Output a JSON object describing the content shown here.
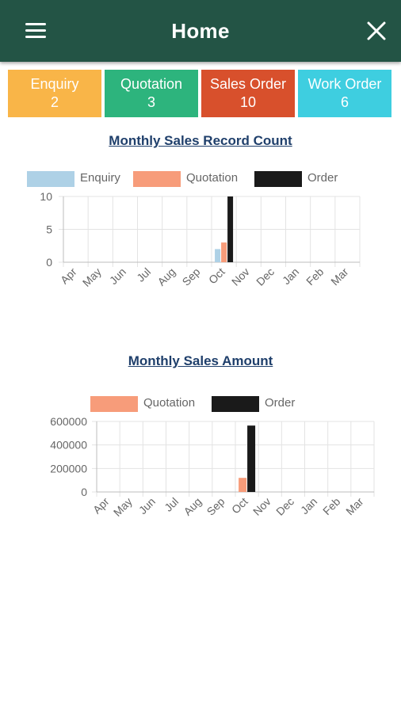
{
  "appbar": {
    "title": "Home",
    "menu_icon": "hamburger-menu-icon",
    "close_icon": "close-icon"
  },
  "cards": [
    {
      "label": "Enquiry",
      "count": "2",
      "color": "#F9B548"
    },
    {
      "label": "Quotation",
      "count": "3",
      "color": "#2DB47D"
    },
    {
      "label": "Sales Order",
      "count": "10",
      "color": "#D8502C"
    },
    {
      "label": "Work Order",
      "count": "6",
      "color": "#3ECEE0"
    }
  ],
  "chart1": {
    "title": "Monthly Sales Record Count"
  },
  "chart2": {
    "title": "Monthly Sales Amount"
  },
  "chart_data": [
    {
      "type": "bar",
      "title": "Monthly Sales Record Count",
      "categories": [
        "Apr",
        "May",
        "Jun",
        "Jul",
        "Aug",
        "Sep",
        "Oct",
        "Nov",
        "Dec",
        "Jan",
        "Feb",
        "Mar"
      ],
      "series": [
        {
          "name": "Enquiry",
          "color": "#AED1E6",
          "values": [
            0,
            0,
            0,
            0,
            0,
            0,
            2,
            0,
            0,
            0,
            0,
            0
          ]
        },
        {
          "name": "Quotation",
          "color": "#F79C7A",
          "values": [
            0,
            0,
            0,
            0,
            0,
            0,
            3,
            0,
            0,
            0,
            0,
            0
          ]
        },
        {
          "name": "Order",
          "color": "#1A1A1A",
          "values": [
            0,
            0,
            0,
            0,
            0,
            0,
            10,
            0,
            0,
            0,
            0,
            0
          ]
        }
      ],
      "yticks": [
        "0",
        "5",
        "10"
      ],
      "ylim": [
        0,
        10
      ],
      "grid": true,
      "legend": "top"
    },
    {
      "type": "bar",
      "title": "Monthly Sales Amount",
      "categories": [
        "Apr",
        "May",
        "Jun",
        "Jul",
        "Aug",
        "Sep",
        "Oct",
        "Nov",
        "Dec",
        "Jan",
        "Feb",
        "Mar"
      ],
      "series": [
        {
          "name": "Quotation",
          "color": "#F79C7A",
          "values": [
            0,
            0,
            0,
            0,
            0,
            0,
            120000,
            0,
            0,
            0,
            0,
            0
          ]
        },
        {
          "name": "Order",
          "color": "#1A1A1A",
          "values": [
            0,
            0,
            0,
            0,
            0,
            0,
            565000,
            0,
            0,
            0,
            0,
            0
          ]
        }
      ],
      "yticks": [
        "0",
        "200000",
        "400000",
        "600000"
      ],
      "ylim": [
        0,
        600000
      ],
      "grid": true,
      "legend": "top"
    }
  ]
}
